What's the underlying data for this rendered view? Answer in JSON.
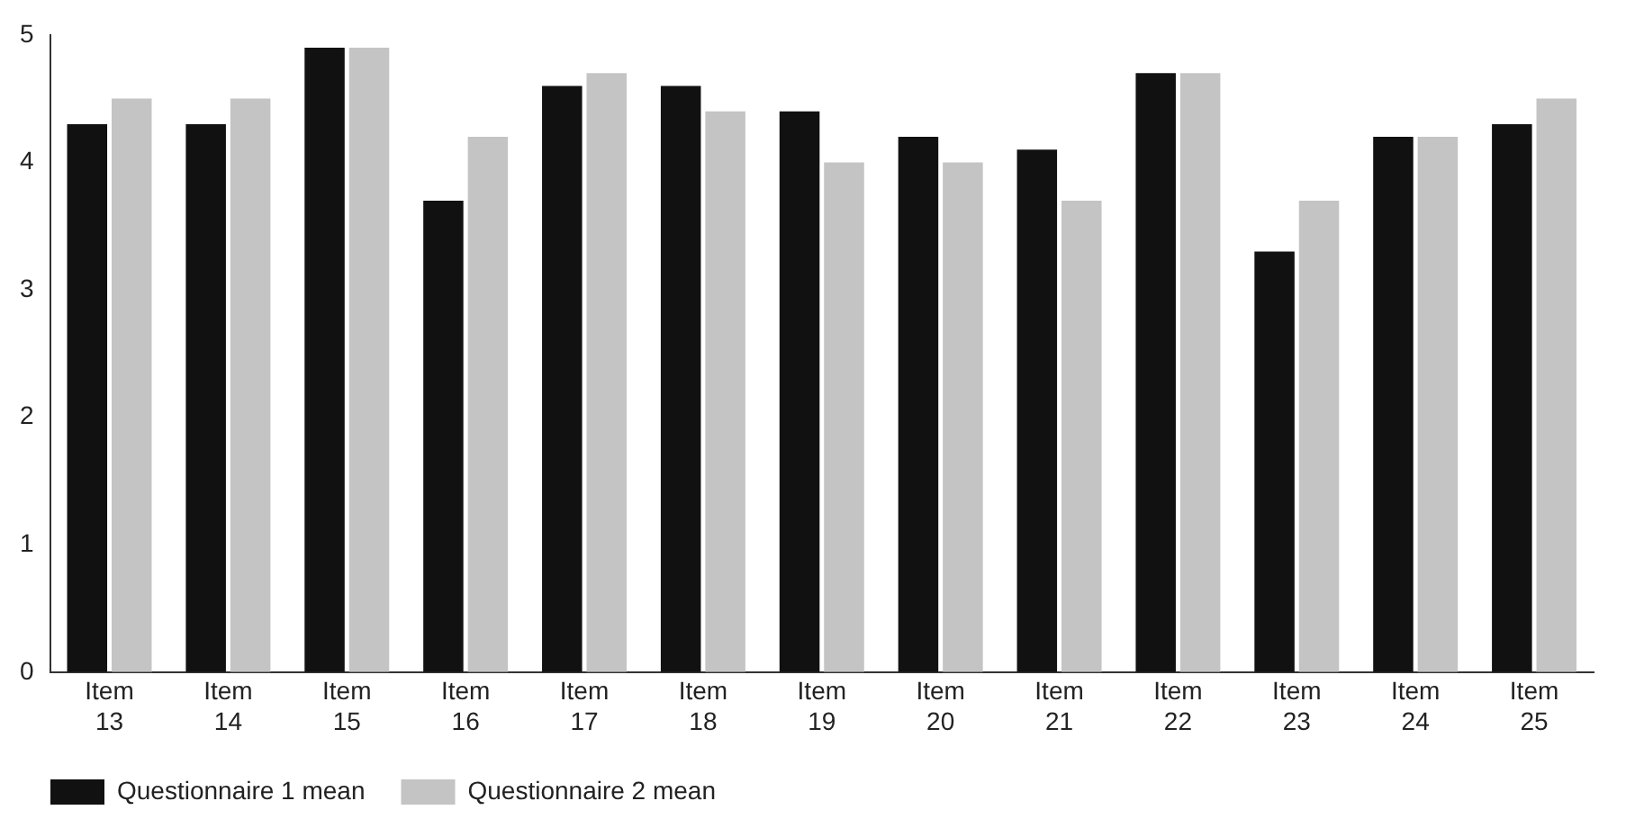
{
  "chart_data": {
    "type": "bar",
    "categories": [
      "Item 13",
      "Item 14",
      "Item 15",
      "Item 16",
      "Item 17",
      "Item 18",
      "Item 19",
      "Item 20",
      "Item 21",
      "Item 22",
      "Item 23",
      "Item 24",
      "Item 25"
    ],
    "series": [
      {
        "name": "Questionnaire 1 mean",
        "color": "#111111",
        "values": [
          4.3,
          4.3,
          4.9,
          3.7,
          4.6,
          4.6,
          4.4,
          4.2,
          4.1,
          4.7,
          3.3,
          4.2,
          4.3
        ]
      },
      {
        "name": "Questionnaire 2 mean",
        "color": "#c4c4c4",
        "values": [
          4.5,
          4.5,
          4.9,
          4.2,
          4.7,
          4.4,
          4.0,
          4.0,
          3.7,
          4.7,
          3.7,
          4.2,
          4.5
        ]
      }
    ],
    "ylim": [
      0,
      5
    ],
    "yticks": [
      0,
      1,
      2,
      3,
      4,
      5
    ],
    "grid": false,
    "legend": "bottom left"
  }
}
